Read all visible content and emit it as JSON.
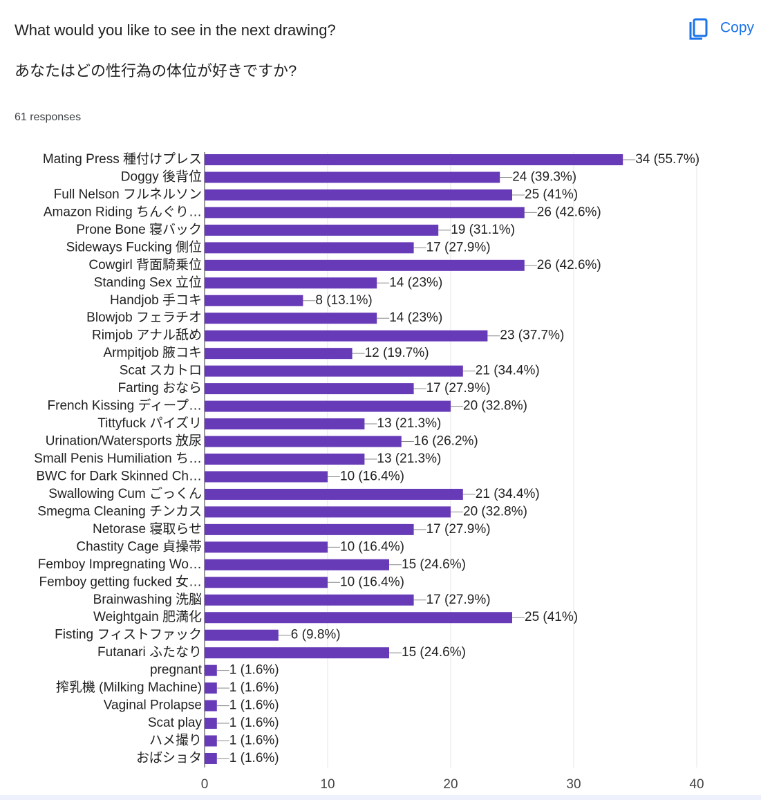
{
  "header": {
    "copy_button": "Copy"
  },
  "chart_data": {
    "type": "bar",
    "orientation": "horizontal",
    "title": "What would you like to see in the next drawing?",
    "subtitle": "あなたはどの性行為の体位が好きですか?",
    "responses": "61 responses",
    "categories": [
      "Mating Press 種付けプレス",
      "Doggy 後背位",
      "Full Nelson フルネルソン",
      "Amazon Riding ちんぐり…",
      "Prone Bone 寝バック",
      "Sideways Fucking 側位",
      "Cowgirl 背面騎乗位",
      "Standing Sex 立位",
      "Handjob 手コキ",
      "Blowjob フェラチオ",
      "Rimjob アナル舐め",
      "Armpitjob 腋コキ",
      "Scat スカトロ",
      "Farting おなら",
      "French Kissing ディープ…",
      "Tittyfuck パイズリ",
      "Urination/Watersports 放尿",
      "Small Penis Humiliation ち…",
      "BWC for Dark Skinned Ch…",
      "Swallowing Cum ごっくん",
      "Smegma Cleaning チンカス",
      "Netorase 寝取らせ",
      "Chastity Cage 貞操帯",
      "Femboy Impregnating Wo…",
      "Femboy getting fucked 女…",
      "Brainwashing 洗脳",
      "Weightgain 肥満化",
      "Fisting フィストファック",
      "Futanari ふたなり",
      "pregnant",
      "搾乳機 (Milking Machine)",
      "Vaginal Prolapse",
      "Scat play",
      "ハメ撮り",
      "おばショタ"
    ],
    "values": [
      34,
      24,
      25,
      26,
      19,
      17,
      26,
      14,
      8,
      14,
      23,
      12,
      21,
      17,
      20,
      13,
      16,
      13,
      10,
      21,
      20,
      17,
      10,
      15,
      10,
      17,
      25,
      6,
      15,
      1,
      1,
      1,
      1,
      1,
      1
    ],
    "value_labels": [
      "34 (55.7%)",
      "24 (39.3%)",
      "25 (41%)",
      "26 (42.6%)",
      "19 (31.1%)",
      "17 (27.9%)",
      "26 (42.6%)",
      "14 (23%)",
      "8 (13.1%)",
      "14 (23%)",
      "23 (37.7%)",
      "12 (19.7%)",
      "21 (34.4%)",
      "17 (27.9%)",
      "20 (32.8%)",
      "13 (21.3%)",
      "16 (26.2%)",
      "13 (21.3%)",
      "10 (16.4%)",
      "21 (34.4%)",
      "20 (32.8%)",
      "17 (27.9%)",
      "10 (16.4%)",
      "15 (24.6%)",
      "10 (16.4%)",
      "17 (27.9%)",
      "25 (41%)",
      "6 (9.8%)",
      "15 (24.6%)",
      "1 (1.6%)",
      "1 (1.6%)",
      "1 (1.6%)",
      "1 (1.6%)",
      "1 (1.6%)",
      "1 (1.6%)"
    ],
    "color": "#673ab7",
    "xlim": [
      0,
      40
    ],
    "xticks": [
      0,
      10,
      20,
      30,
      40
    ],
    "grid": true
  }
}
